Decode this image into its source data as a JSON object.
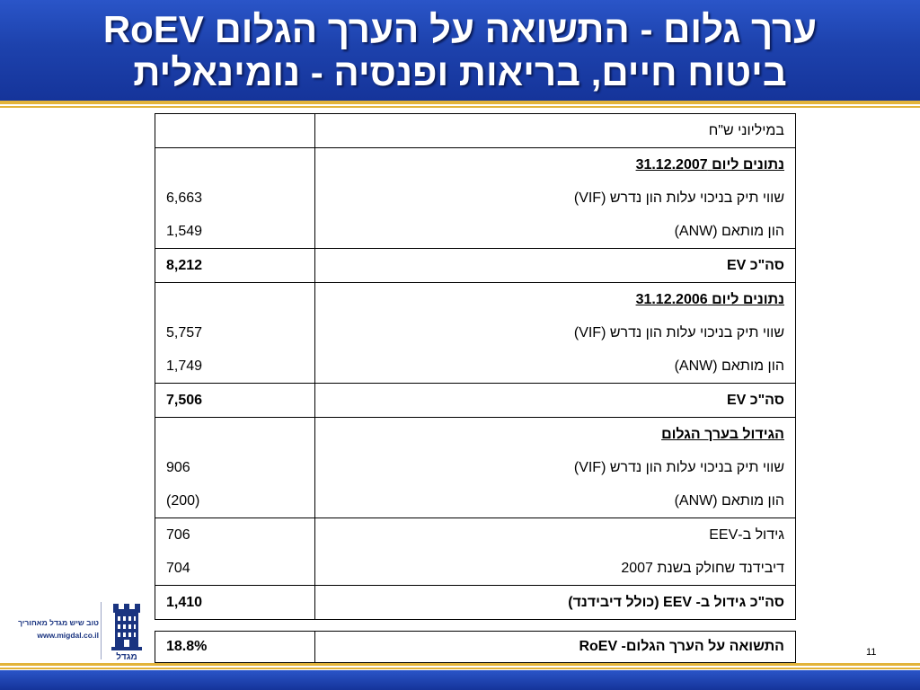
{
  "header": {
    "title_line1": "ערך גלום - התשואה על הערך הגלום RoEV",
    "title_line2": "ביטוח חיים, בריאות ופנסיה - נומינאלית"
  },
  "table": {
    "unit_label": "במיליוני ש\"ח",
    "section_2007": {
      "heading": "נתונים ליום 31.12.2007",
      "vif_label": "שווי תיק בניכוי עלות הון נדרש (VIF)",
      "vif_value": "6,663",
      "anw_label": "הון מותאם (ANW)",
      "anw_value": "1,549",
      "total_label": "סה\"כ EV",
      "total_value": "8,212"
    },
    "section_2006": {
      "heading": "נתונים ליום 31.12.2006",
      "vif_label": "שווי תיק בניכוי עלות הון נדרש (VIF)",
      "vif_value": "5,757",
      "anw_label": "הון מותאם (ANW)",
      "anw_value": "1,749",
      "total_label": "סה\"כ EV",
      "total_value": "7,506"
    },
    "section_growth": {
      "heading": "הגידול בערך הגלום",
      "vif_label": "שווי תיק בניכוי עלות הון נדרש (VIF)",
      "vif_value": "906",
      "anw_label": "הון מותאם (ANW)",
      "anw_value": "(200)",
      "eev_label": "גידול ב-EEV",
      "eev_value": "706",
      "dividend_label": "דיבידנד שחולק בשנת 2007",
      "dividend_value": "704",
      "total_label": "סה\"כ גידול ב- EEV (כולל דיבידנד)",
      "total_value": "1,410"
    }
  },
  "result": {
    "label": "התשואה על הערך הגלום- RoEV",
    "value": "18.8%"
  },
  "logo": {
    "tagline": "טוב שיש מגדל מאחוריך",
    "url": "www.migdal.co.il",
    "brand": "מגדל",
    "mark_icon": "tower-icon"
  },
  "page_number": "11",
  "colors": {
    "header_blue": "#1d42ad",
    "accent_gold": "#e2b33a",
    "logo_blue": "#1a3480"
  }
}
